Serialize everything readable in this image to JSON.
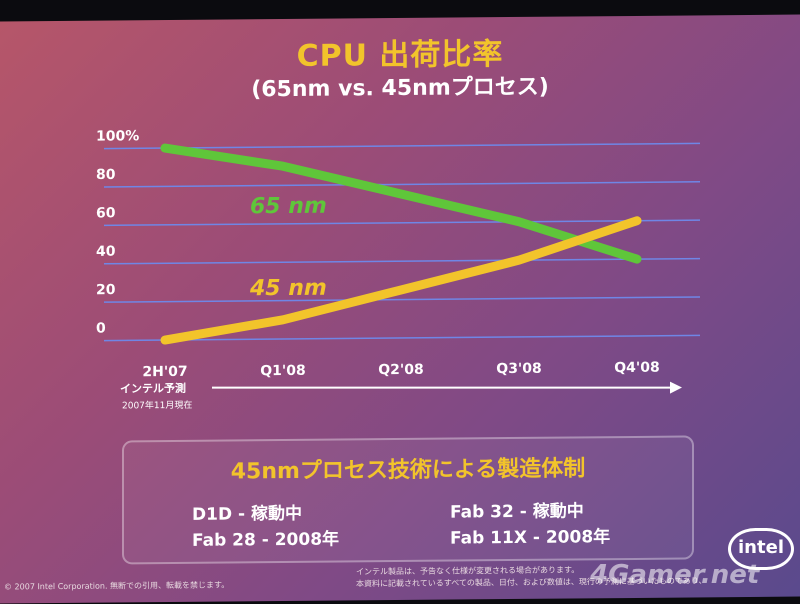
{
  "title": "CPU 出荷比率",
  "subtitle": "(65nm vs. 45nmプロセス)",
  "chart_data": {
    "type": "line",
    "categories": [
      "2H'07",
      "Q1'08",
      "Q2'08",
      "Q3'08",
      "Q4'08"
    ],
    "ytick_labels": [
      "100%",
      "80",
      "60",
      "40",
      "20",
      "0"
    ],
    "ylim": [
      0,
      100
    ],
    "grid": true,
    "series": [
      {
        "name": "65 nm",
        "values": [
          100,
          90,
          75,
          60,
          40
        ],
        "color": "#5fc63a"
      },
      {
        "name": "45 nm",
        "values": [
          0,
          10,
          25,
          40,
          60
        ],
        "color": "#f2c42b"
      }
    ]
  },
  "arrow_label": "インテル予測",
  "asof_label": "2007年11月現在",
  "fab_box": {
    "title": "45nmプロセス技術による製造体制",
    "items": [
      "D1D - 稼動中",
      "Fab 28 - 2008年",
      "Fab 32 - 稼動中",
      "Fab 11X - 2008年"
    ]
  },
  "footer": {
    "left": "© 2007 Intel Corporation. 無断での引用、転載を禁じます。",
    "mid1": "インテル製品は、予告なく仕様が変更される場合があります。",
    "mid2": "本資料に記載されているすべての製品、日付、および数値は、現行の予測に基づいたものであり、"
  },
  "logo_text": "intel",
  "watermark": "4Gamer.net"
}
